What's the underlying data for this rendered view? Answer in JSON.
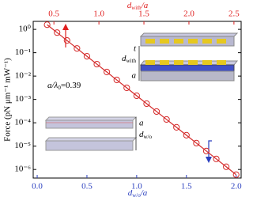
{
  "chart_data": {
    "type": "line",
    "y_label": "Force (pN μm⁻¹ mW⁻¹)",
    "x_label": {
      "main": "d",
      "sub": "w/o",
      "rest": "/a"
    },
    "x2_label": {
      "main": "d",
      "sub": "with",
      "rest": "/a"
    },
    "x": [
      0.1,
      0.2,
      0.3,
      0.4,
      0.5,
      0.6,
      0.7,
      0.8,
      0.9,
      1.0,
      1.1,
      1.2,
      1.3,
      1.4,
      1.5,
      1.6,
      1.7,
      1.8,
      1.9,
      2.0
    ],
    "series": [
      {
        "color": "#d42a2a",
        "values": [
          1.58,
          0.728,
          0.334,
          0.153,
          0.0705,
          0.0324,
          0.0149,
          0.00682,
          0.00313,
          0.00144,
          0.00066,
          0.000303,
          0.000139,
          6.4e-05,
          2.94e-05,
          1.35e-05,
          6.2e-06,
          2.84e-06,
          1.31e-06,
          6e-07
        ]
      }
    ],
    "xlim": [
      -0.04,
      2.05
    ],
    "xticks": [
      {
        "value": 0,
        "label": "0.0"
      },
      {
        "value": 0.5,
        "label": "0.5"
      },
      {
        "value": 1,
        "label": "1.0"
      },
      {
        "value": 1.5,
        "label": "1.5"
      },
      {
        "value": 2,
        "label": "2.0"
      }
    ],
    "x_color": "#2a3fbf",
    "x2lim": [
      0.27,
      2.58
    ],
    "x2ticks": [
      {
        "value": 0.5,
        "label": "0.5"
      },
      {
        "value": 1,
        "label": "1.0"
      },
      {
        "value": 1.5,
        "label": "1.5"
      },
      {
        "value": 2,
        "label": "2.0"
      },
      {
        "value": 2.5,
        "label": "2.5"
      }
    ],
    "x2_color": "#e02020",
    "ylim": [
      2.2,
      4.3e-07
    ],
    "log_y": true,
    "yticks": [
      {
        "value": 1,
        "label": "10⁰"
      },
      {
        "value": 0.1,
        "label": "10⁻¹"
      },
      {
        "value": 0.01,
        "label": "10⁻²"
      },
      {
        "value": 0.001,
        "label": "10⁻³"
      },
      {
        "value": 0.0001,
        "label": "10⁻⁴"
      },
      {
        "value": 1e-05,
        "label": "10⁻⁵"
      },
      {
        "value": 1e-06,
        "label": "10⁻⁶"
      }
    ],
    "annotation": {
      "main": "a/λ",
      "sub": "0",
      "rest": "=0.39"
    },
    "insets": {
      "top": {
        "t": "t",
        "d": "d",
        "d_sub": "with",
        "a": "a"
      },
      "bottom": {
        "a": "a",
        "d": "d",
        "d_sub": "w/o"
      }
    }
  }
}
